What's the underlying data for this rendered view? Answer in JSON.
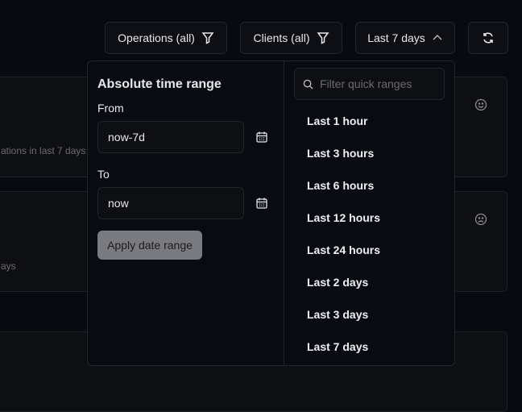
{
  "toolbar": {
    "operations": "Operations (all)",
    "clients": "Clients (all)",
    "range": "Last 7 days"
  },
  "cards": [
    {
      "subtitle": "ations in last 7 days",
      "icon": "smile-icon"
    },
    {
      "subtitle": "ays",
      "icon": "frown-icon"
    },
    {}
  ],
  "popover": {
    "title": "Absolute time range",
    "from_label": "From",
    "from_value": "now-7d",
    "to_label": "To",
    "to_value": "now",
    "apply": "Apply date range",
    "search_placeholder": "Filter quick ranges",
    "quick_ranges": [
      "Last 1 hour",
      "Last 3 hours",
      "Last 6 hours",
      "Last 12 hours",
      "Last 24 hours",
      "Last 2 days",
      "Last 3 days",
      "Last 7 days"
    ]
  }
}
